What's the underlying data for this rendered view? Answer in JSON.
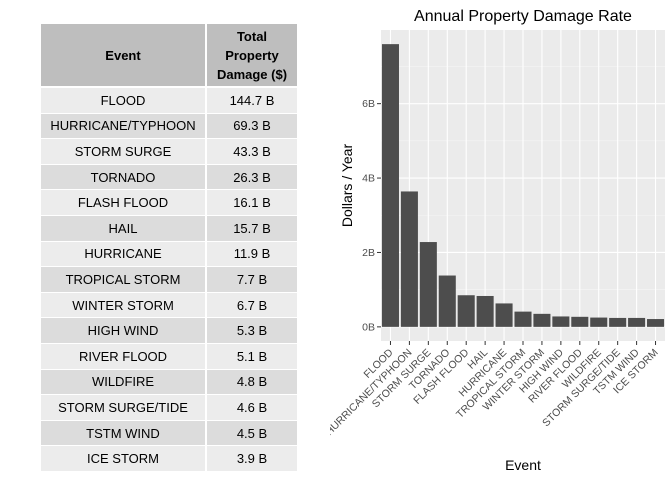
{
  "table": {
    "headers": [
      "Event",
      "Total Property Damage ($)"
    ],
    "header_lines": [
      "Total",
      "Property",
      "Damage ($)"
    ],
    "rows": [
      [
        "FLOOD",
        "144.7 B"
      ],
      [
        "HURRICANE/TYPHOON",
        "69.3 B"
      ],
      [
        "STORM SURGE",
        "43.3 B"
      ],
      [
        "TORNADO",
        "26.3 B"
      ],
      [
        "FLASH FLOOD",
        "16.1 B"
      ],
      [
        "HAIL",
        "15.7 B"
      ],
      [
        "HURRICANE",
        "11.9 B"
      ],
      [
        "TROPICAL STORM",
        "7.7 B"
      ],
      [
        "WINTER STORM",
        "6.7 B"
      ],
      [
        "HIGH WIND",
        "5.3 B"
      ],
      [
        "RIVER FLOOD",
        "5.1 B"
      ],
      [
        "WILDFIRE",
        "4.8 B"
      ],
      [
        "STORM SURGE/TIDE",
        "4.6 B"
      ],
      [
        "TSTM WIND",
        "4.5 B"
      ],
      [
        "ICE STORM",
        "3.9 B"
      ]
    ]
  },
  "chart_data": {
    "type": "bar",
    "title": "Annual Property Damage Rate",
    "xlabel": "Event",
    "ylabel": "Dollars / Year",
    "categories": [
      "FLOOD",
      "HURRICANE/TYPHOON",
      "STORM SURGE",
      "TORNADO",
      "FLASH FLOOD",
      "HAIL",
      "HURRICANE",
      "TROPICAL STORM",
      "WINTER STORM",
      "HIGH WIND",
      "RIVER FLOOD",
      "WILDFIRE",
      "STORM SURGE/TIDE",
      "TSTM WIND",
      "ICE STORM"
    ],
    "values": [
      7.6,
      3.64,
      2.28,
      1.38,
      0.85,
      0.83,
      0.63,
      0.41,
      0.35,
      0.28,
      0.27,
      0.25,
      0.24,
      0.24,
      0.21
    ],
    "value_unit": "B",
    "yticks": [
      0,
      2,
      4,
      6
    ],
    "ytick_labels": [
      "0B",
      "2B",
      "4B",
      "6B"
    ],
    "ylim": [
      -0.38,
      7.98
    ],
    "grid": true,
    "colors": {
      "panel_bg": "#ebebeb",
      "grid_major": "#ffffff",
      "grid_minor": "#f5f5f5",
      "bar": "#4d4d4d",
      "tick_label": "#4d4d4d"
    }
  }
}
